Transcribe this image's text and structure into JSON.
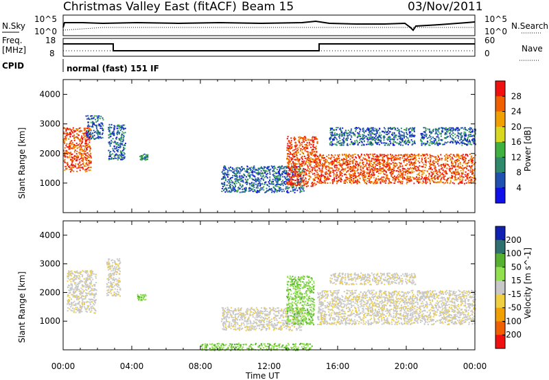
{
  "header": {
    "title": "Christmas Valley East (fitACF)",
    "beam": "Beam 15",
    "date": "03/Nov/2011"
  },
  "top_panels": {
    "nsky_label": "N.Sky",
    "nsky_ticks": [
      "10^5",
      "10^0"
    ],
    "nsearch_label": "N.Search",
    "nsearch_ticks": [
      "10^5",
      "10^0"
    ],
    "freq_label": "Freq.",
    "freq_unit": "[MHz]",
    "freq_ticks": [
      "18",
      "8"
    ],
    "nave_label": "Nave",
    "nave_ticks": [
      "60",
      "0"
    ],
    "cpid_label": "CPID",
    "cpid_value": "normal (fast) 151 IF"
  },
  "chart_data": [
    {
      "type": "heatmap",
      "panel": "power",
      "xlabel": "",
      "ylabel": "Slant Range [km]",
      "y_ticks": [
        "1000",
        "2000",
        "3000",
        "4000"
      ],
      "ylim": [
        0,
        4500
      ],
      "xlim": [
        0,
        24
      ],
      "colorbar_label": "Power [dB]",
      "colorbar_ticks": [
        "4",
        "8",
        "12",
        "16",
        "20",
        "24",
        "28"
      ],
      "colorbar_colors": [
        "#1010e8",
        "#2050b0",
        "#2e8a6a",
        "#40b040",
        "#d8d820",
        "#f0a000",
        "#f06000",
        "#f01010"
      ],
      "echo_regions": [
        {
          "t0": 0.0,
          "t1": 1.6,
          "r0": 1400,
          "r1": 2900,
          "level": "high"
        },
        {
          "t0": 1.3,
          "t1": 2.3,
          "r0": 2500,
          "r1": 3300,
          "level": "mid"
        },
        {
          "t0": 2.6,
          "t1": 3.6,
          "r0": 1800,
          "r1": 3000,
          "level": "mid"
        },
        {
          "t0": 4.4,
          "t1": 4.9,
          "r0": 1800,
          "r1": 2000,
          "level": "low"
        },
        {
          "t0": 9.2,
          "t1": 14.0,
          "r0": 700,
          "r1": 1600,
          "level": "mid"
        },
        {
          "t0": 13.0,
          "t1": 14.8,
          "r0": 900,
          "r1": 2600,
          "level": "high"
        },
        {
          "t0": 14.8,
          "t1": 24.0,
          "r0": 1000,
          "r1": 2000,
          "level": "high"
        },
        {
          "t0": 15.5,
          "t1": 20.5,
          "r0": 2300,
          "r1": 2900,
          "level": "mid"
        },
        {
          "t0": 20.8,
          "t1": 24.0,
          "r0": 2300,
          "r1": 2900,
          "level": "mid"
        }
      ]
    },
    {
      "type": "heatmap",
      "panel": "velocity",
      "xlabel": "Time UT",
      "ylabel": "Slant Range [km]",
      "x_ticks": [
        "00:00",
        "04:00",
        "08:00",
        "12:00",
        "16:00",
        "20:00",
        "00:00"
      ],
      "y_ticks": [
        "1000",
        "2000",
        "3000",
        "4000"
      ],
      "ylim": [
        0,
        4500
      ],
      "xlim": [
        0,
        24
      ],
      "colorbar_label": "Velocity [m s^-1]",
      "colorbar_ticks": [
        "200",
        "100",
        "50",
        "15",
        "-15",
        "-50",
        "-100",
        "-200"
      ],
      "colorbar_colors": [
        "#1020b0",
        "#2f6f6f",
        "#58b030",
        "#90e050",
        "#c8c8c8",
        "#f0d040",
        "#f0a000",
        "#f06000",
        "#f01010"
      ],
      "echo_regions": [
        {
          "t0": 0.2,
          "t1": 1.9,
          "r0": 1300,
          "r1": 2800,
          "level": "ground"
        },
        {
          "t0": 2.5,
          "t1": 3.3,
          "r0": 1900,
          "r1": 3200,
          "level": "ground"
        },
        {
          "t0": 4.3,
          "t1": 4.8,
          "r0": 1750,
          "r1": 1950,
          "level": "pos"
        },
        {
          "t0": 9.2,
          "t1": 14.0,
          "r0": 700,
          "r1": 1500,
          "level": "ground"
        },
        {
          "t0": 13.0,
          "t1": 14.6,
          "r0": 900,
          "r1": 2600,
          "level": "pos"
        },
        {
          "t0": 14.8,
          "t1": 24.0,
          "r0": 900,
          "r1": 2100,
          "level": "ground"
        },
        {
          "t0": 15.5,
          "t1": 20.5,
          "r0": 2300,
          "r1": 2700,
          "level": "ground"
        },
        {
          "t0": 8.0,
          "t1": 14.5,
          "r0": 0,
          "r1": 250,
          "level": "pos"
        }
      ]
    }
  ]
}
